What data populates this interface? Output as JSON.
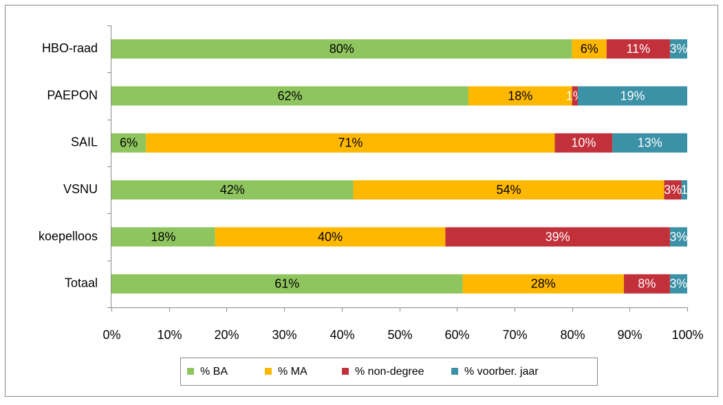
{
  "chart_data": {
    "type": "bar",
    "orientation": "horizontal",
    "stacked": true,
    "categories": [
      "HBO-raad",
      "PAEPON",
      "SAIL",
      "VSNU",
      "koepelloos",
      "Totaal"
    ],
    "series": [
      {
        "name": "% BA",
        "color": "#8fc55f",
        "values": [
          80,
          62,
          6,
          42,
          18,
          61
        ],
        "value_labels": [
          "80%",
          "62%",
          "6%",
          "42%",
          "18%",
          "61%"
        ]
      },
      {
        "name": "% MA",
        "color": "#ffb800",
        "values": [
          6,
          18,
          71,
          54,
          40,
          28
        ],
        "value_labels": [
          "6%",
          "18%",
          "71%",
          "54%",
          "40%",
          "28%"
        ]
      },
      {
        "name": "% non-degree",
        "color": "#c2303a",
        "values": [
          11,
          1,
          10,
          3,
          39,
          8
        ],
        "value_labels": [
          "11%",
          "1%",
          "10%",
          "3%",
          "39%",
          "8%"
        ]
      },
      {
        "name": "% voorber. jaar",
        "color": "#3b91a6",
        "values": [
          3,
          19,
          13,
          1,
          3,
          3
        ],
        "value_labels": [
          "3%",
          "19%",
          "13%",
          "1",
          "3%",
          "3%"
        ]
      }
    ],
    "xlim": [
      0,
      100
    ],
    "xticks": [
      {
        "value": 0,
        "label": "0%"
      },
      {
        "value": 10,
        "label": "10%"
      },
      {
        "value": 20,
        "label": "20%"
      },
      {
        "value": 30,
        "label": "30%"
      },
      {
        "value": 40,
        "label": "40%"
      },
      {
        "value": 50,
        "label": "50%"
      },
      {
        "value": 60,
        "label": "60%"
      },
      {
        "value": 70,
        "label": "70%"
      },
      {
        "value": 80,
        "label": "80%"
      },
      {
        "value": 90,
        "label": "90%"
      },
      {
        "value": 100,
        "label": "100%"
      }
    ],
    "legend": "bottom"
  }
}
